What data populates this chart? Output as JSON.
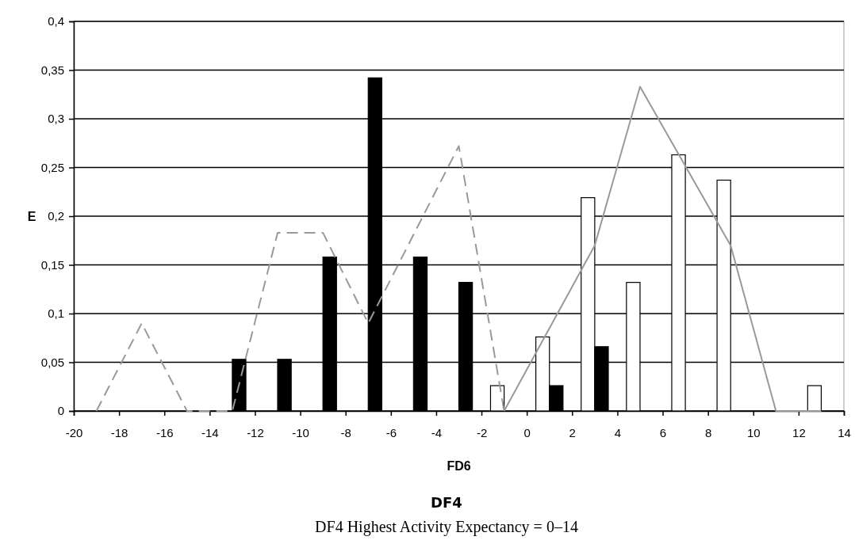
{
  "chart_data": {
    "type": "bar",
    "title": "DF4",
    "subtitle": "DF4 Highest Activity Expectancy = 0–14",
    "xlabel": "FD6",
    "ylabel": "E",
    "x": [
      -13,
      -11,
      -9,
      -7,
      -5,
      -3,
      -1,
      1,
      3,
      5,
      7,
      9,
      11,
      13
    ],
    "series": [
      {
        "color": "#ffffff",
        "values": [
          0,
          0,
          0,
          0,
          0,
          0,
          0.026,
          0.076,
          0.219,
          0.132,
          0.263,
          0.237,
          0,
          0.026
        ]
      },
      {
        "color": "#000000",
        "values": [
          0.053,
          0.053,
          0.158,
          0.342,
          0.158,
          0.132,
          0,
          0.026,
          0.066,
          0,
          0,
          0,
          0,
          0
        ]
      },
      {
        "type": "line",
        "line_style": "dashed",
        "color": "#999999",
        "x": [
          -19,
          -17,
          -15,
          -13,
          -11,
          -9,
          -7,
          -3,
          -1
        ],
        "values": [
          0,
          0.09,
          0,
          0,
          0.183,
          0.183,
          0.09,
          0.272,
          0
        ]
      },
      {
        "type": "line",
        "line_style": "solid",
        "color": "#999999",
        "x": [
          -1,
          3,
          5,
          9,
          11,
          13
        ],
        "values": [
          0,
          0.17,
          0.333,
          0.17,
          0,
          0
        ]
      }
    ],
    "xlim": [
      -20,
      14
    ],
    "xticks": [
      -20,
      -18,
      -16,
      -14,
      -12,
      -10,
      -8,
      -6,
      -4,
      -2,
      0,
      2,
      4,
      6,
      8,
      10,
      12,
      14
    ],
    "ylim": [
      0,
      0.4
    ],
    "yticks": [
      0,
      {
        "value": 0.05,
        "label": "0,05"
      },
      {
        "value": 0.1,
        "label": "0,1"
      },
      {
        "value": 0.15,
        "label": "0,15"
      },
      {
        "value": 0.2,
        "label": "0,2"
      },
      {
        "value": 0.25,
        "label": "0,25"
      },
      {
        "value": 0.3,
        "label": "0,3"
      },
      {
        "value": 0.35,
        "label": "0,35"
      },
      {
        "value": 0.4,
        "label": "0,4"
      }
    ],
    "grid": "y"
  }
}
